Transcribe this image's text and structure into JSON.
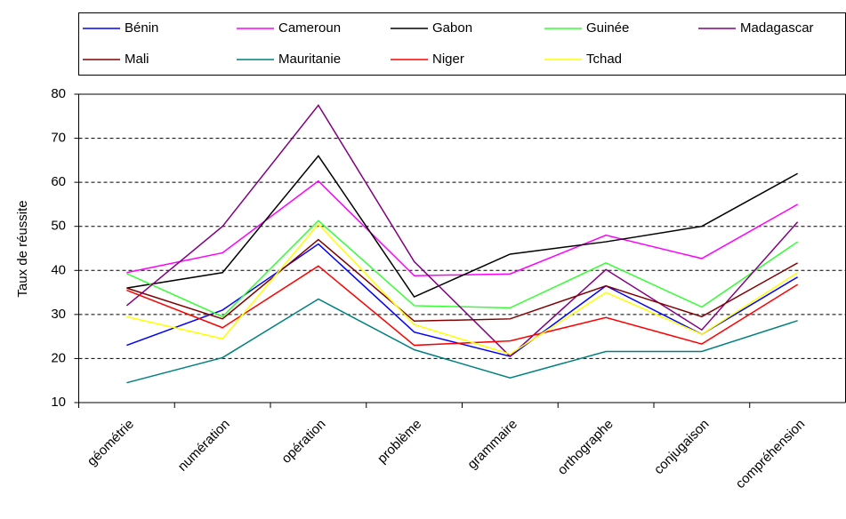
{
  "chart_data": {
    "type": "line",
    "y_label": "Taux de réussite",
    "categories": [
      "géométrie",
      "numération",
      "opération",
      "problème",
      "grammaire",
      "orthographe",
      "conjugaison",
      "compréhension"
    ],
    "series": [
      {
        "name": "Bénin",
        "color": "#0000ff",
        "values": [
          23,
          31,
          46,
          26,
          20.5,
          36.5,
          25.5,
          38.5
        ]
      },
      {
        "name": "Cameroun",
        "color": "#ff00ff",
        "values": [
          39.5,
          44,
          60.3,
          38.8,
          39.2,
          48,
          42.7,
          55
        ]
      },
      {
        "name": "Gabon",
        "color": "#000000",
        "values": [
          36,
          39.5,
          66,
          34,
          43.7,
          46.5,
          50,
          62
        ]
      },
      {
        "name": "Guinée",
        "color": "#33ff33",
        "values": [
          39.3,
          29.5,
          51.3,
          32,
          31.5,
          41.7,
          31.7,
          46.5
        ]
      },
      {
        "name": "Madagascar",
        "color": "#800080",
        "values": [
          32,
          50,
          77.5,
          42,
          20.5,
          40.2,
          26.5,
          51
        ]
      },
      {
        "name": "Mali",
        "color": "#800000",
        "values": [
          36,
          29,
          47,
          28.5,
          29,
          36.5,
          29.5,
          41.7
        ]
      },
      {
        "name": "Mauritanie",
        "color": "#008080",
        "values": [
          14.5,
          20.2,
          33.5,
          22,
          15.6,
          21.6,
          21.6,
          28.6
        ]
      },
      {
        "name": "Niger",
        "color": "#ff0000",
        "values": [
          35.5,
          27,
          41,
          23,
          24,
          29.3,
          23.3,
          36.8
        ]
      },
      {
        "name": "Tchad",
        "color": "#ffff00",
        "values": [
          29.5,
          24.5,
          50.5,
          27.7,
          21,
          35,
          25.5,
          39.5
        ]
      }
    ],
    "ylim": [
      10,
      80
    ],
    "yticks": [
      10,
      20,
      30,
      40,
      50,
      60,
      70,
      80
    ],
    "grid": true,
    "legend": "top"
  }
}
